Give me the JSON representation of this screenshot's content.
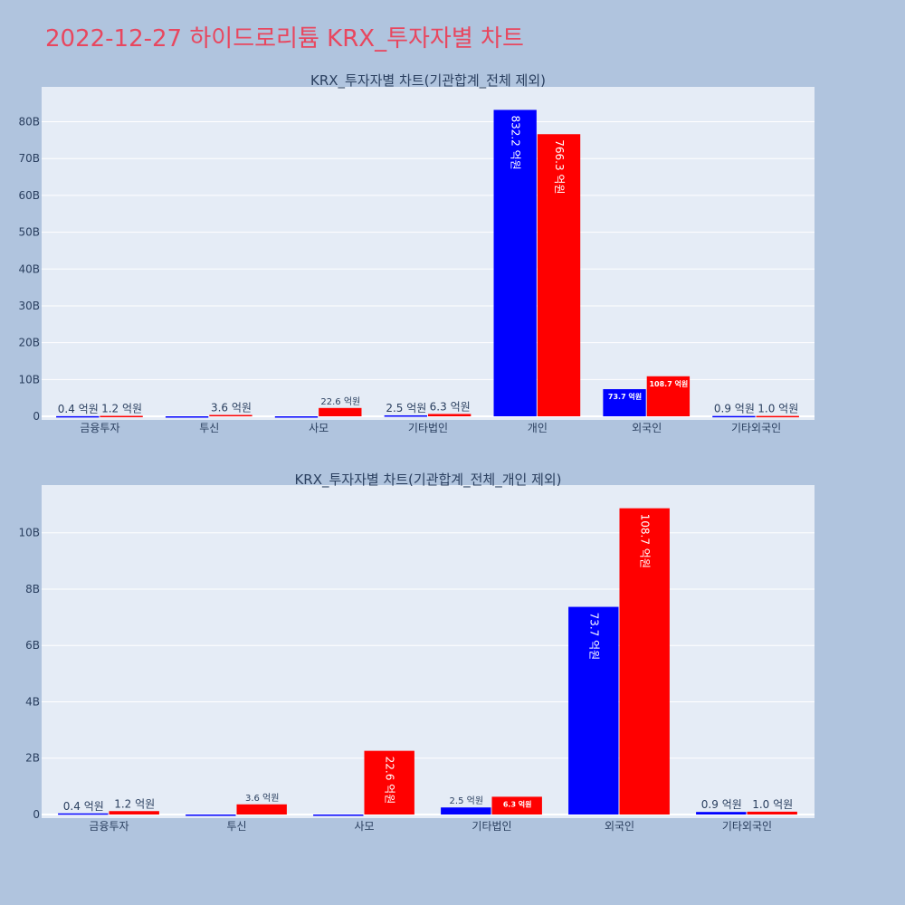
{
  "page_title": "2022-12-27 하이드로리튬 KRX_투자자별 차트",
  "colors": {
    "title": "#e8475f",
    "series_a": "#0000ff",
    "series_b": "#ff0000",
    "plot_bg": "#e5ecf6",
    "page_bg": "#b0c4de"
  },
  "chart_data": [
    {
      "type": "bar",
      "title": "KRX_투자자별 차트(기관합계_전체 제외)",
      "categories": [
        "금융투자",
        "투신",
        "사모",
        "기타법인",
        "개인",
        "외국인",
        "기타외국인"
      ],
      "ylim": [
        0,
        88
      ],
      "y_ticks": [
        0,
        10,
        20,
        30,
        40,
        50,
        60,
        70,
        80
      ],
      "y_tick_labels": [
        "0",
        "10B",
        "20B",
        "30B",
        "40B",
        "50B",
        "60B",
        "70B",
        "80B"
      ],
      "series": [
        {
          "color": "#0000ff",
          "values": [
            0.04,
            0,
            0,
            0.25,
            83.22,
            7.37,
            0.09
          ],
          "labels": [
            "0.4 억원",
            "",
            "",
            "2.5 억원",
            "832.2 억원",
            "73.7 억원",
            "0.9 억원"
          ]
        },
        {
          "color": "#ff0000",
          "values": [
            0.12,
            0.36,
            2.26,
            0.63,
            76.63,
            10.87,
            0.1
          ],
          "labels": [
            "1.2 억원",
            "3.6 억원",
            "22.6 억원",
            "6.3 억원",
            "766.3 억원",
            "108.7 억원",
            "1.0 억원"
          ]
        }
      ]
    },
    {
      "type": "bar",
      "title": "KRX_투자자별 차트(기관합계_전체_개인 제외)",
      "categories": [
        "금융투자",
        "투신",
        "사모",
        "기타법인",
        "외국인",
        "기타외국인"
      ],
      "ylim": [
        0,
        11.5
      ],
      "y_ticks": [
        0,
        2,
        4,
        6,
        8,
        10
      ],
      "y_tick_labels": [
        "0",
        "2B",
        "4B",
        "6B",
        "8B",
        "10B"
      ],
      "series": [
        {
          "color": "#0000ff",
          "values": [
            0.04,
            0,
            0,
            0.25,
            7.37,
            0.09
          ],
          "labels": [
            "0.4 억원",
            "",
            "",
            "2.5 억원",
            "73.7 억원",
            "0.9 억원"
          ]
        },
        {
          "color": "#ff0000",
          "values": [
            0.12,
            0.36,
            2.26,
            0.63,
            10.87,
            0.1
          ],
          "labels": [
            "1.2 억원",
            "3.6 억원",
            "22.6 억원",
            "6.3 억원",
            "108.7 억원",
            "1.0 억원"
          ]
        }
      ]
    }
  ]
}
